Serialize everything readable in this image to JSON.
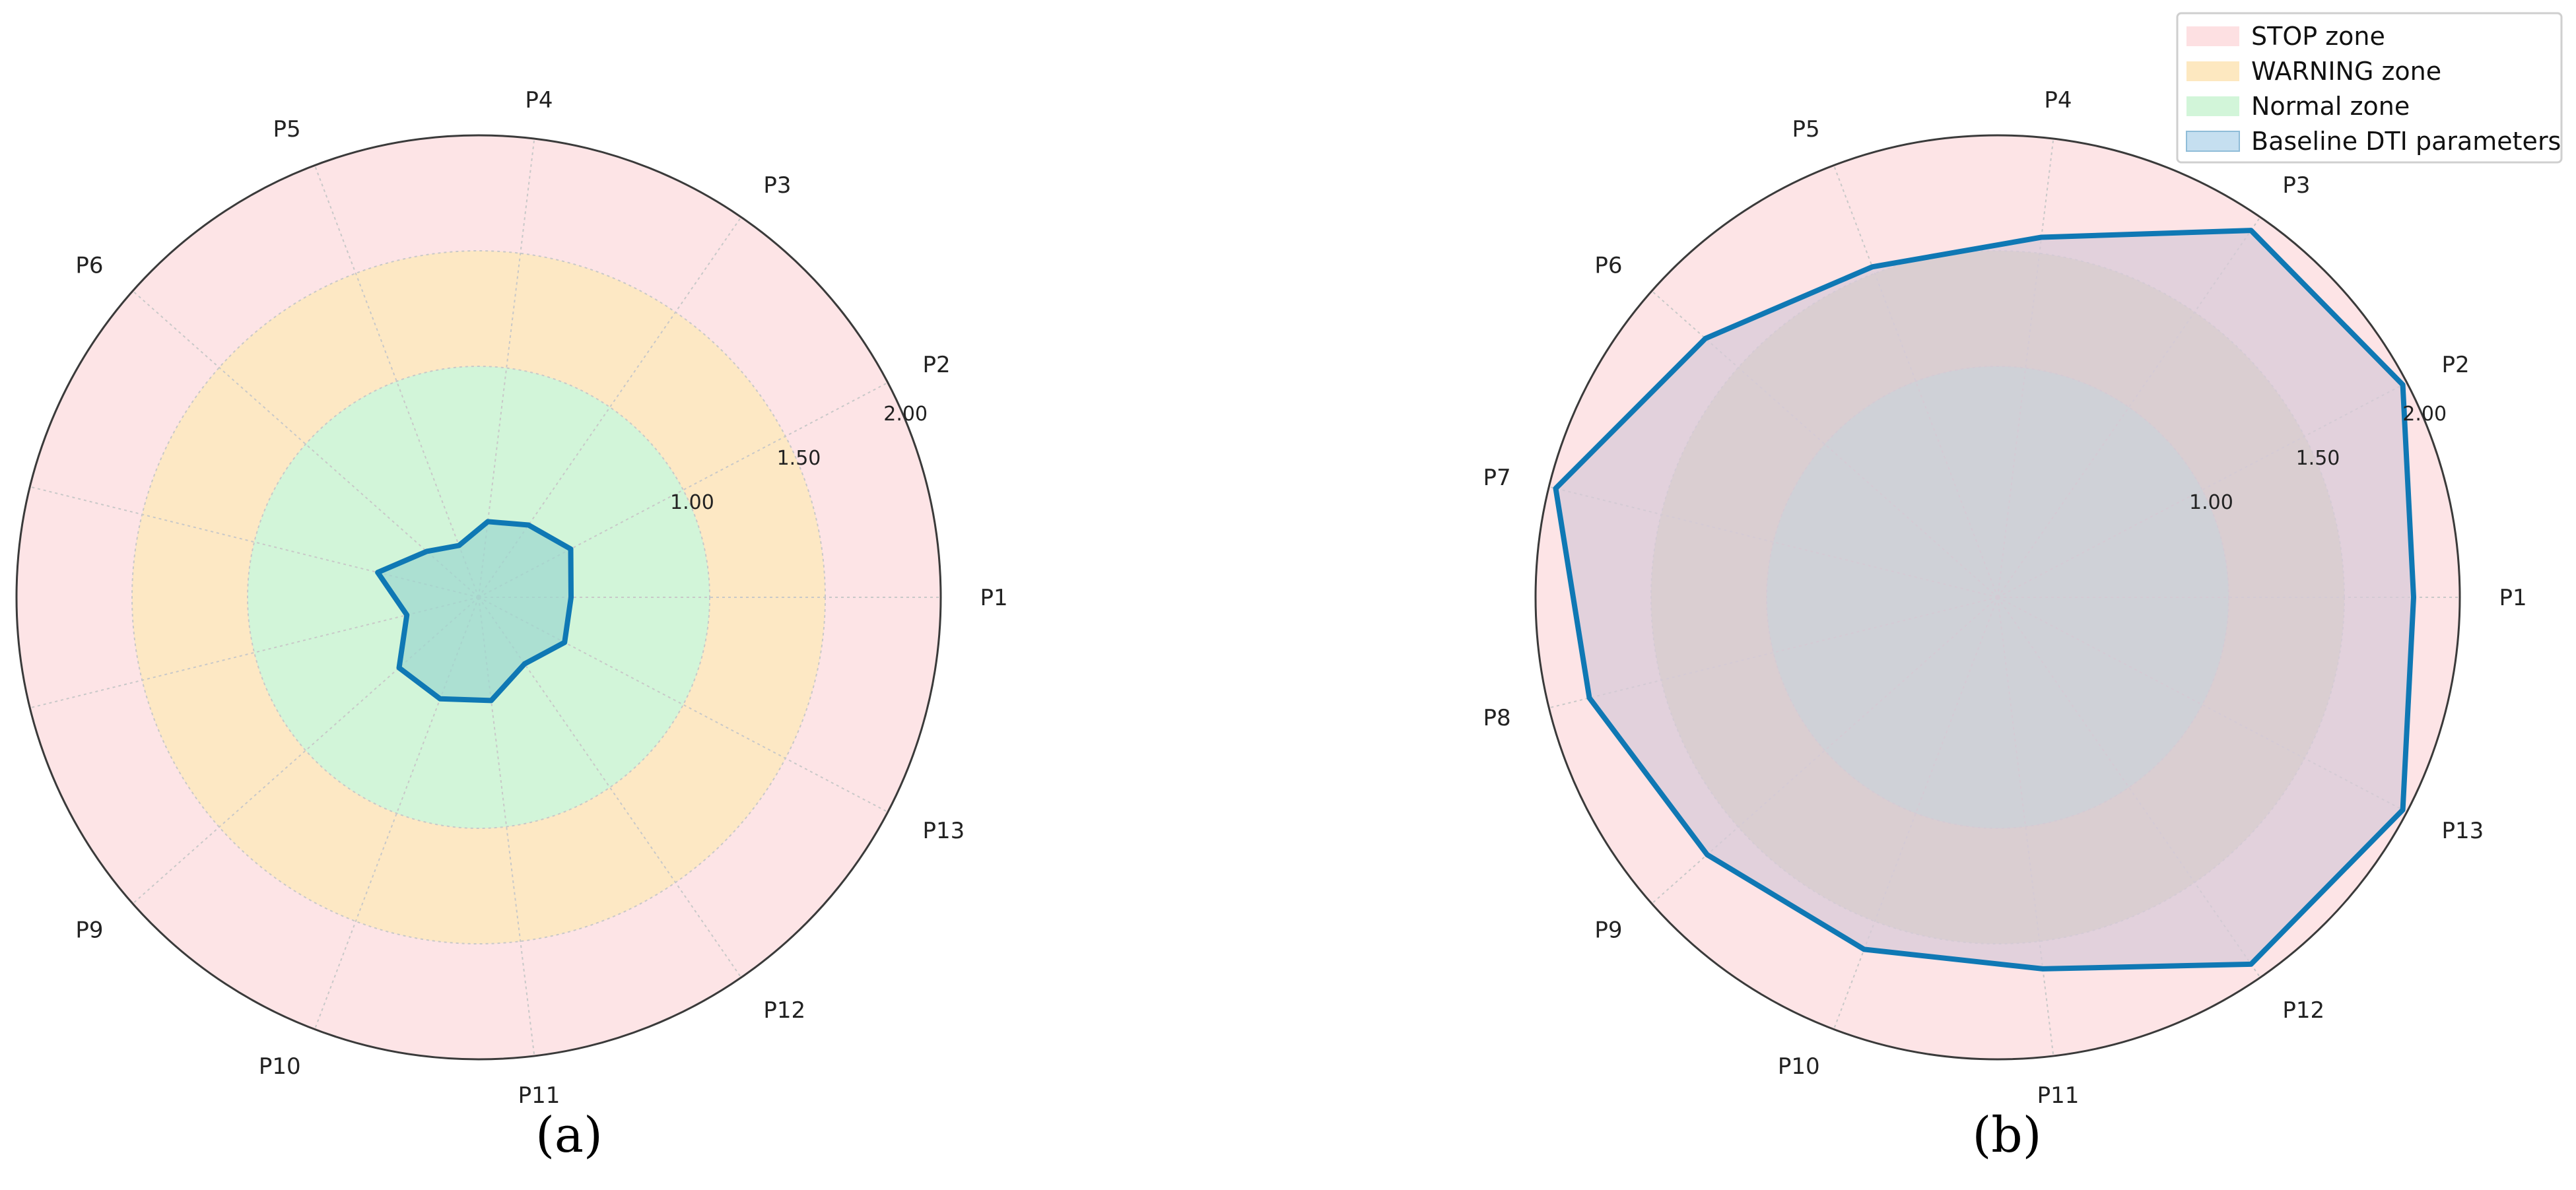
{
  "chart_data": [
    {
      "type": "radar",
      "panel_label": "(a)",
      "axes": [
        "P1",
        "P2",
        "P3",
        "P4",
        "P5",
        "P6",
        "P7",
        "P8",
        "P9",
        "P10",
        "P11",
        "P12",
        "P13"
      ],
      "rticks": [
        {
          "value": 1.0,
          "label": "1.00"
        },
        {
          "value": 1.5,
          "label": "1.50"
        },
        {
          "value": 2.0,
          "label": "2.00"
        }
      ],
      "rlim": [
        0,
        2.0
      ],
      "zones": [
        {
          "name": "STOP zone",
          "from": 1.5,
          "to": 2.0,
          "color": "#fde4e6"
        },
        {
          "name": "WARNING zone",
          "from": 1.0,
          "to": 1.5,
          "color": "#fde8c4"
        },
        {
          "name": "Normal zone",
          "from": 0,
          "to": 1.0,
          "color": "#d2f5d9"
        }
      ],
      "series": [
        {
          "values": [
            0.4,
            0.45,
            0.38,
            0.33,
            0.24,
            0.3,
            0.45,
            0.32,
            0.46,
            0.47,
            0.45,
            0.35,
            0.42
          ],
          "color": "#0f78b4",
          "fill": "#9fd8cf"
        }
      ],
      "grid": true
    },
    {
      "type": "radar",
      "panel_label": "(b)",
      "axes": [
        "P1",
        "P2",
        "P3",
        "P4",
        "P5",
        "P6",
        "P7",
        "P8",
        "P9",
        "P10",
        "P11",
        "P12",
        "P13"
      ],
      "rticks": [
        {
          "value": 1.0,
          "label": "1.00"
        },
        {
          "value": 1.5,
          "label": "1.50"
        },
        {
          "value": 2.0,
          "label": "2.00"
        }
      ],
      "rlim": [
        0,
        2.0
      ],
      "zones": [
        {
          "name": "STOP zone",
          "from": 1.5,
          "to": 2.0,
          "color": "#fde4e6"
        },
        {
          "name": "WARNING zone",
          "from": 1.0,
          "to": 1.5,
          "color": "#e0d7bb"
        },
        {
          "name": "Normal zone",
          "from": 0,
          "to": 1.0,
          "color": "#b3e4d2"
        }
      ],
      "series": [
        {
          "name": "Baseline DTI parameters",
          "values": [
            1.8,
            1.98,
            1.93,
            1.57,
            1.53,
            1.69,
            1.97,
            1.82,
            1.68,
            1.63,
            1.62,
            1.93,
            1.98
          ],
          "color": "#0f78b4",
          "fill": "#d8cbd8"
        }
      ],
      "grid": true
    }
  ],
  "legend": {
    "position": "top-right",
    "items": [
      {
        "label": "STOP zone",
        "color": "#fde0e2"
      },
      {
        "label": "WARNING zone",
        "color": "#fde8c0"
      },
      {
        "label": "Normal zone",
        "color": "#d2f5d9"
      },
      {
        "label": "Baseline DTI parameters",
        "color": "#c5dff0"
      }
    ]
  }
}
